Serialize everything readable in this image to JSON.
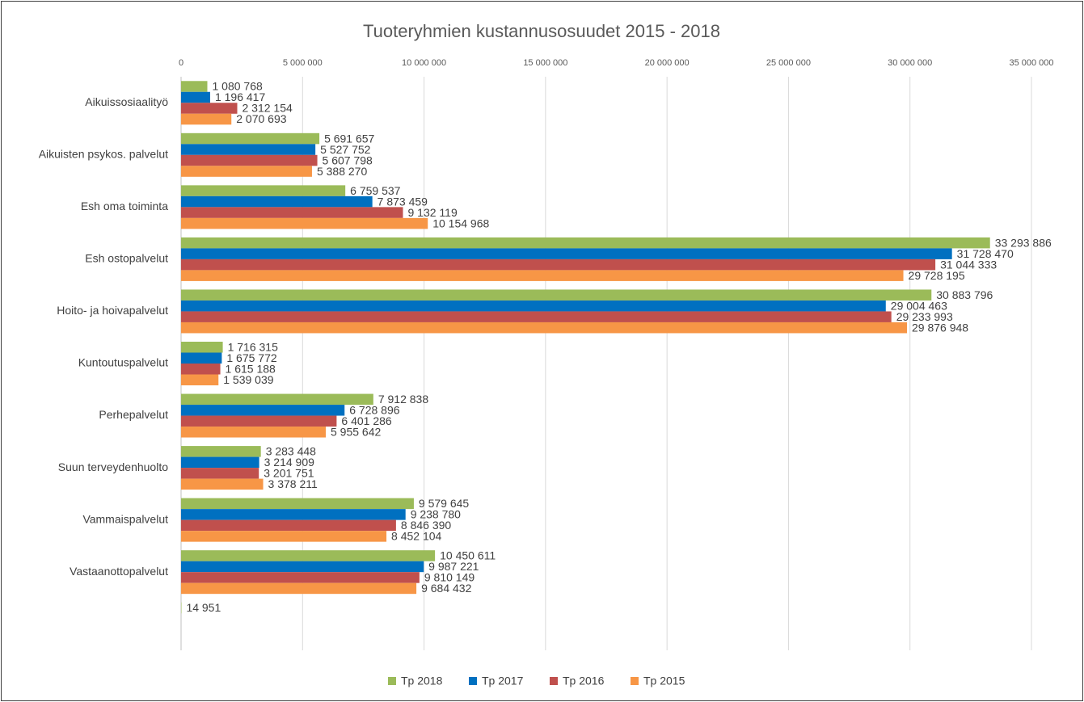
{
  "chart_data": {
    "type": "hbar",
    "title": "Tuoteryhmien kustannusosuudet 2015 - 2018",
    "categories": [
      "Aikuissosiaalityö",
      "Aikuisten psykos. palvelut",
      "Esh oma toiminta",
      "Esh ostopalvelut",
      "Hoito- ja hoivapalvelut",
      "Kuntoutuspalvelut",
      "Perhepalvelut",
      "Suun terveydenhuolto",
      "Vammaispalvelut",
      "Vastaanottopalvelut",
      null
    ],
    "series": [
      {
        "name": "Tp 2018",
        "color": "#9bbb59",
        "values": [
          1080768,
          5691657,
          6759537,
          33293886,
          30883796,
          1716315,
          7912838,
          3283448,
          9579645,
          10450611,
          14951
        ],
        "value_labels": [
          "1 080 768",
          "5 691 657",
          "6 759 537",
          "33 293 886",
          "30 883 796",
          "1 716 315",
          "7 912 838",
          "3 283 448",
          "9 579 645",
          "10 450 611",
          "14 951"
        ]
      },
      {
        "name": "Tp 2017",
        "color": "#0070c0",
        "values": [
          1196417,
          5527752,
          7873459,
          31728470,
          29004463,
          1675772,
          6728896,
          3214909,
          9238780,
          9987221,
          null
        ],
        "value_labels": [
          "1 196 417",
          "5 527 752",
          "7 873 459",
          "31 728 470",
          "29 004 463",
          "1 675 772",
          "6 728 896",
          "3 214 909",
          "9 238 780",
          "9 987 221",
          null
        ]
      },
      {
        "name": "Tp 2016",
        "color": "#c0504d",
        "values": [
          2312154,
          5607798,
          9132119,
          31044333,
          29233993,
          1615188,
          6401286,
          3201751,
          8846390,
          9810149,
          null
        ],
        "value_labels": [
          "2 312 154",
          "5 607 798",
          "9 132 119",
          "31 044 333",
          "29 233 993",
          "1 615 188",
          "6 401 286",
          "3 201 751",
          "8 846 390",
          "9 810 149",
          null
        ]
      },
      {
        "name": "Tp 2015",
        "color": "#f79646",
        "values": [
          2070693,
          5388270,
          10154968,
          29728195,
          29876948,
          1539039,
          5955642,
          3378211,
          8452104,
          9684432,
          null
        ],
        "value_labels": [
          "2 070 693",
          "5 388 270",
          "10 154 968",
          "29 728 195",
          "29 876 948",
          "1 539 039",
          "5 955 642",
          "3 378 211",
          "8 452 104",
          "9 684 432",
          null
        ]
      }
    ],
    "xlim": [
      0,
      35000000
    ],
    "xticks": [
      0,
      {
        "value": 5000000,
        "label": "5 000 000"
      },
      {
        "value": 10000000,
        "label": "10 000 000"
      },
      {
        "value": 15000000,
        "label": "15 000 000"
      },
      {
        "value": 20000000,
        "label": "20 000 000"
      },
      {
        "value": 25000000,
        "label": "25 000 000"
      },
      {
        "value": 30000000,
        "label": "30 000 000"
      },
      {
        "value": 35000000,
        "label": "35 000 000"
      }
    ],
    "grid": true,
    "legend": "bottom"
  }
}
